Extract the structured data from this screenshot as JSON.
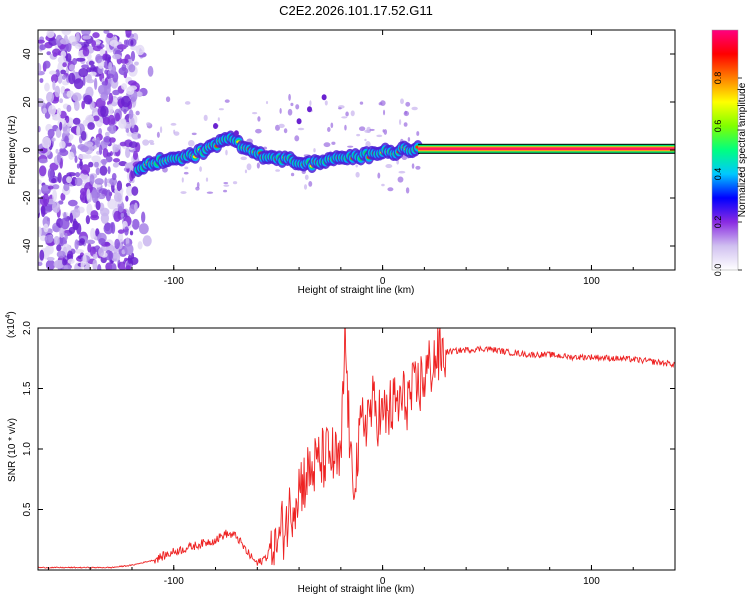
{
  "figure": {
    "title": "C2E2.2026.101.17.52.G11"
  },
  "chart_data": [
    {
      "type": "heatmap",
      "title": "C2E2.2026.101.17.52.G11",
      "xlabel": "Height of straight line (km)",
      "ylabel": "Frequency (Hz)",
      "xlim": [
        -165,
        140
      ],
      "ylim": [
        -50,
        50
      ],
      "xticks": [
        -100,
        0,
        100
      ],
      "yticks": [
        -40,
        -20,
        0,
        20,
        40
      ],
      "colorbar": {
        "label": "Normalized spectral amplitude",
        "range": [
          0,
          1
        ],
        "ticks": [
          "0.0",
          "0.2",
          "0.4",
          "0.6",
          "0.8"
        ],
        "colors": [
          "#ffffff",
          "#d0c0f0",
          "#8a2be2",
          "#0000ff",
          "#00c8ff",
          "#00ff80",
          "#80ff00",
          "#ffff00",
          "#ff8000",
          "#ff0000",
          "#ff0080"
        ]
      },
      "ridge": {
        "name": "dominant frequency track",
        "x": [
          -117,
          -110,
          -100,
          -90,
          -80,
          -72,
          -65,
          -55,
          -45,
          -35,
          -25,
          -15,
          -5,
          0,
          5,
          10,
          17,
          40,
          80,
          120,
          140
        ],
        "y": [
          -8,
          -5,
          -4,
          -2,
          2,
          5,
          0,
          -3,
          -4,
          -6,
          -4,
          -3,
          -2,
          0,
          -1,
          0,
          0.5,
          0.5,
          0.5,
          0.5,
          0.5
        ],
        "steady_from_x": 17,
        "steady_value_hz": 0.5
      },
      "noise_region_x": [
        -165,
        -118
      ]
    },
    {
      "type": "line",
      "xlabel": "Height of straight line (km)",
      "ylabel": "SNR (10 * v/v)",
      "y_multiplier_label": "(x10",
      "y_multiplier_exp": "4",
      "y_multiplier_close": ")",
      "xlim": [
        -165,
        140
      ],
      "ylim": [
        0,
        2.0
      ],
      "xticks": [
        -100,
        0,
        100
      ],
      "yticks": [
        "0.5",
        "1.0",
        "1.5",
        "2.0"
      ],
      "color": "#ee2222",
      "series": [
        {
          "name": "SNR",
          "x": [
            -165,
            -150,
            -130,
            -120,
            -110,
            -100,
            -90,
            -80,
            -75,
            -70,
            -65,
            -60,
            -55,
            -50,
            -45,
            -40,
            -35,
            -30,
            -25,
            -20,
            -18,
            -15,
            -12,
            -10,
            -5,
            0,
            5,
            10,
            15,
            20,
            25,
            30,
            40,
            50,
            60,
            70,
            80,
            90,
            100,
            110,
            120,
            130,
            140
          ],
          "y": [
            0.02,
            0.02,
            0.02,
            0.04,
            0.08,
            0.15,
            0.2,
            0.25,
            0.3,
            0.28,
            0.15,
            0.05,
            0.12,
            0.25,
            0.45,
            0.7,
            0.8,
            0.9,
            0.95,
            0.85,
            1.95,
            0.75,
            0.9,
            1.2,
            1.35,
            1.25,
            1.35,
            1.4,
            1.45,
            1.6,
            1.75,
            1.8,
            1.82,
            1.83,
            1.8,
            1.78,
            1.78,
            1.76,
            1.76,
            1.75,
            1.74,
            1.72,
            1.7
          ]
        }
      ]
    }
  ]
}
